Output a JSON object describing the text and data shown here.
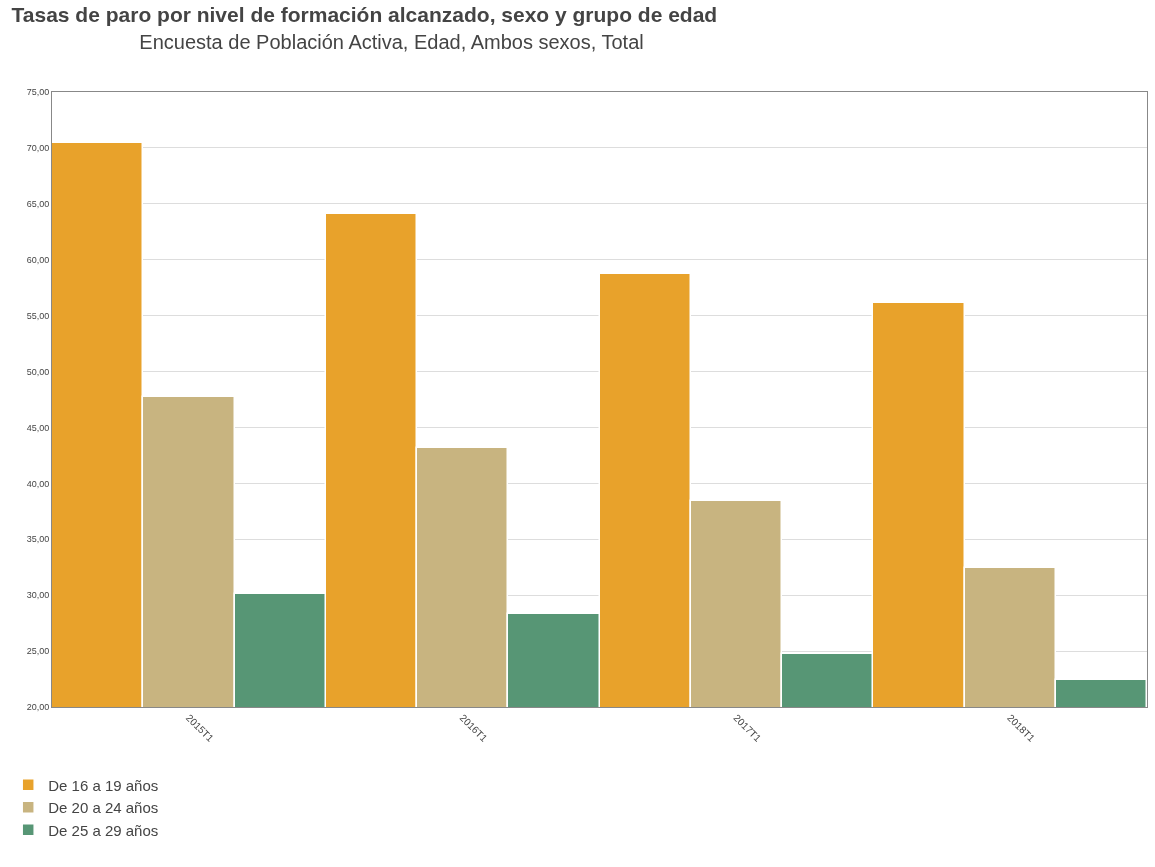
{
  "chart_data": {
    "type": "bar",
    "title": "Tasas de paro por nivel de formación alcanzado, sexo y grupo de edad",
    "subtitle": "Encuesta de Población Activa, Edad, Ambos sexos, Total",
    "categories": [
      "2015T1",
      "2016T1",
      "2017T1",
      "2018T1"
    ],
    "series": [
      {
        "name": "De 16 a 19 años",
        "color": "#e8a22b",
        "values": [
          70.4,
          64.1,
          58.7,
          56.1
        ]
      },
      {
        "name": "De 20 a 24 años",
        "color": "#c8b480",
        "values": [
          47.7,
          43.2,
          38.4,
          32.4
        ]
      },
      {
        "name": "De 25 a 29 años",
        "color": "#579675",
        "values": [
          30.1,
          28.3,
          24.7,
          22.4
        ]
      }
    ],
    "ylim": [
      20,
      75
    ],
    "yticks": [
      {
        "value": 20,
        "label": "20,00"
      },
      {
        "value": 25,
        "label": "25,00"
      },
      {
        "value": 30,
        "label": "30,00"
      },
      {
        "value": 35,
        "label": "35,00"
      },
      {
        "value": 40,
        "label": "40,00"
      },
      {
        "value": 45,
        "label": "45,00"
      },
      {
        "value": 50,
        "label": "50,00"
      },
      {
        "value": 55,
        "label": "55,00"
      },
      {
        "value": 60,
        "label": "60,00"
      },
      {
        "value": 65,
        "label": "65,00"
      },
      {
        "value": 70,
        "label": "70,00"
      },
      {
        "value": 75,
        "label": "75,00"
      }
    ],
    "grid": "y",
    "legend": "bottom left"
  }
}
